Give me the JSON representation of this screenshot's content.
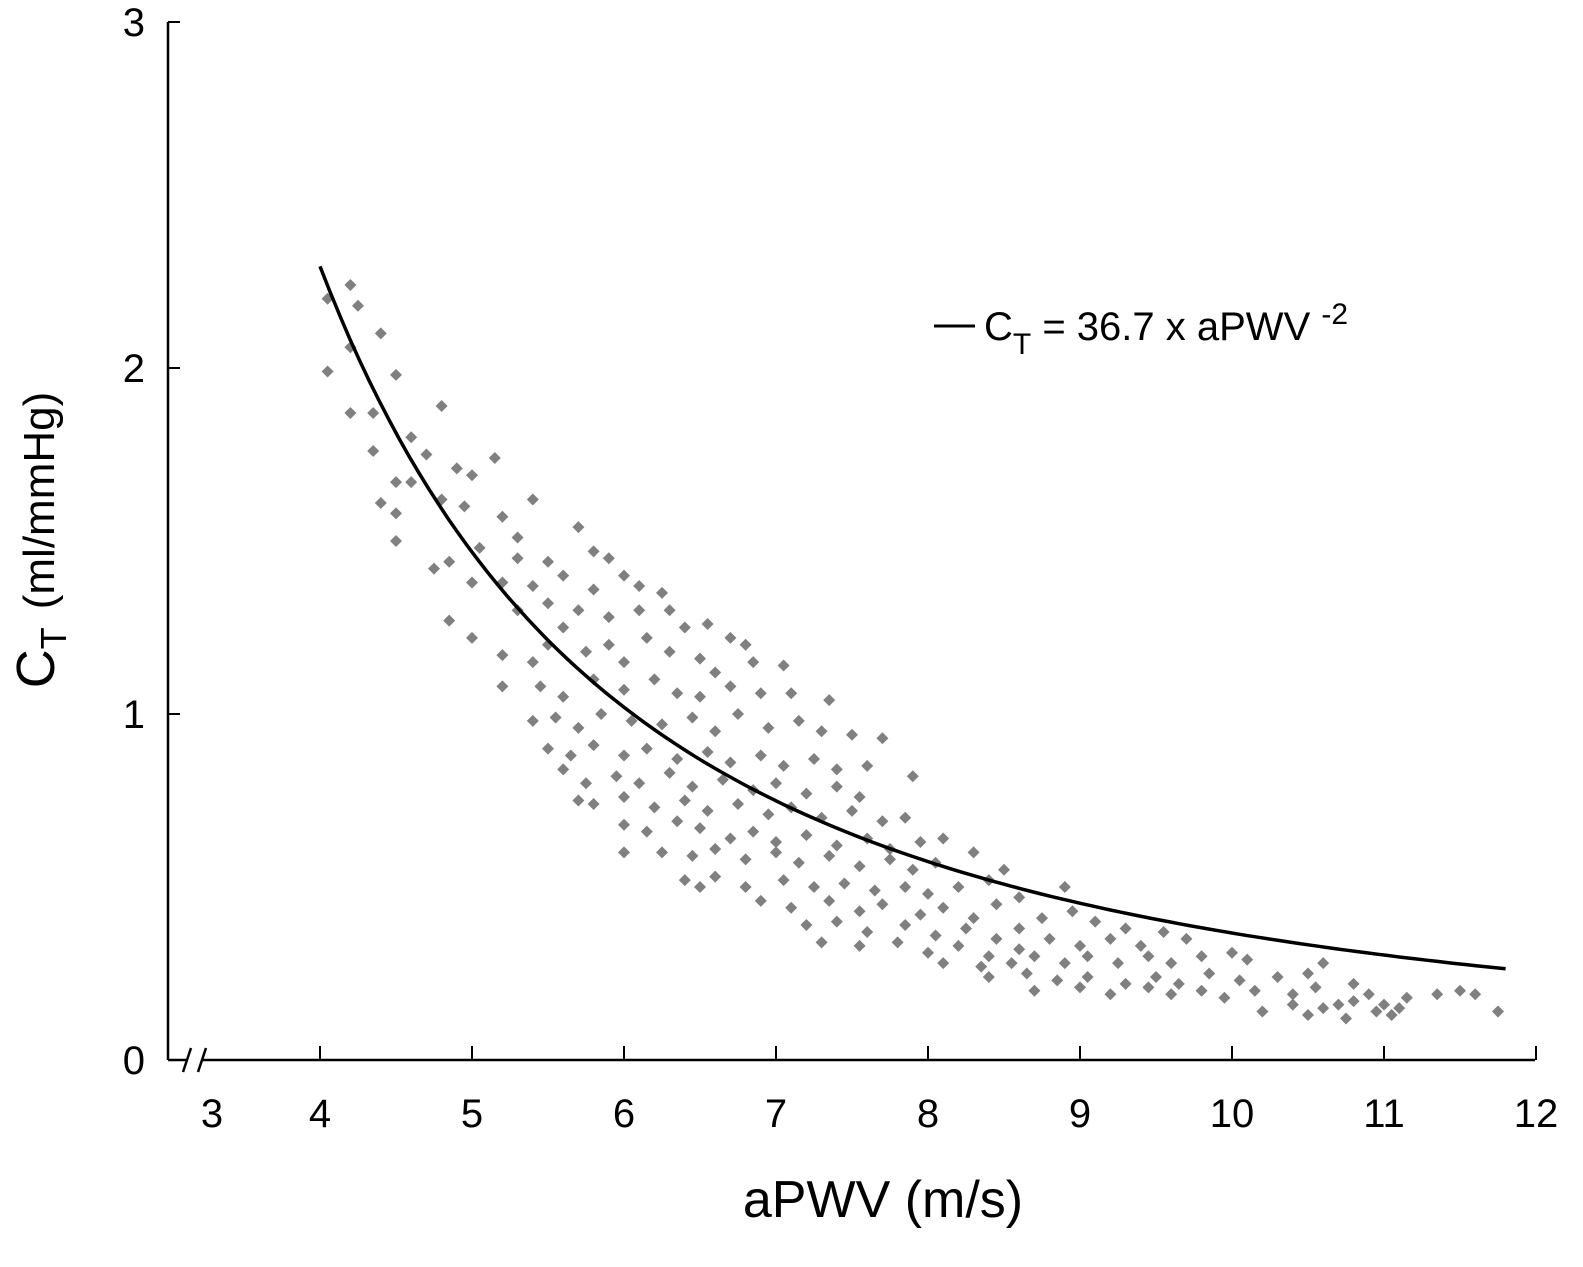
{
  "chart_data": {
    "type": "scatter",
    "ylabel": {
      "main": "C",
      "sub": "T",
      "unit": "(ml/mmHg)"
    },
    "xlabel": "aPWV (m/s)",
    "xlim": [
      3,
      12
    ],
    "ylim": [
      0,
      3
    ],
    "x_axis_break": true,
    "x_ticks": [
      "3",
      "4",
      "5",
      "6",
      "7",
      "8",
      "9",
      "10",
      "11",
      "12"
    ],
    "y_ticks": [
      "0",
      "1",
      "2",
      "3"
    ],
    "grid": false,
    "legend_position": "top-right",
    "legend": {
      "line_label": {
        "pre": "C",
        "sub": "T",
        "mid": " = 36.7 x aPWV ",
        "sup": "-2"
      }
    },
    "fit": {
      "coefficient": 36.7,
      "exponent": -2,
      "x_range": [
        4,
        11.8
      ]
    },
    "series": [
      {
        "marker": "diamond",
        "color": "#808080",
        "points": [
          [
            4.05,
            2.2
          ],
          [
            4.2,
            2.24
          ],
          [
            4.25,
            2.18
          ],
          [
            4.4,
            2.1
          ],
          [
            4.2,
            2.06
          ],
          [
            4.05,
            1.99
          ],
          [
            4.5,
            1.98
          ],
          [
            4.2,
            1.87
          ],
          [
            4.35,
            1.87
          ],
          [
            4.8,
            1.89
          ],
          [
            4.35,
            1.76
          ],
          [
            4.6,
            1.8
          ],
          [
            4.7,
            1.75
          ],
          [
            4.9,
            1.71
          ],
          [
            5.15,
            1.74
          ],
          [
            4.5,
            1.67
          ],
          [
            4.6,
            1.67
          ],
          [
            4.8,
            1.62
          ],
          [
            5.0,
            1.69
          ],
          [
            5.4,
            1.62
          ],
          [
            4.4,
            1.61
          ],
          [
            4.5,
            1.58
          ],
          [
            4.95,
            1.6
          ],
          [
            5.3,
            1.51
          ],
          [
            5.2,
            1.57
          ],
          [
            4.5,
            1.5
          ],
          [
            4.75,
            1.42
          ],
          [
            4.85,
            1.44
          ],
          [
            5.05,
            1.48
          ],
          [
            5.3,
            1.45
          ],
          [
            5.5,
            1.44
          ],
          [
            5.7,
            1.54
          ],
          [
            5.8,
            1.47
          ],
          [
            5.9,
            1.45
          ],
          [
            5.0,
            1.38
          ],
          [
            5.2,
            1.38
          ],
          [
            5.4,
            1.37
          ],
          [
            5.6,
            1.4
          ],
          [
            5.8,
            1.36
          ],
          [
            6.0,
            1.4
          ],
          [
            6.1,
            1.37
          ],
          [
            6.25,
            1.35
          ],
          [
            4.85,
            1.27
          ],
          [
            5.0,
            1.22
          ],
          [
            5.3,
            1.3
          ],
          [
            5.5,
            1.32
          ],
          [
            5.7,
            1.3
          ],
          [
            5.9,
            1.28
          ],
          [
            6.1,
            1.3
          ],
          [
            6.3,
            1.3
          ],
          [
            6.4,
            1.25
          ],
          [
            6.55,
            1.26
          ],
          [
            6.7,
            1.22
          ],
          [
            6.8,
            1.2
          ],
          [
            5.2,
            1.17
          ],
          [
            5.4,
            1.15
          ],
          [
            5.5,
            1.2
          ],
          [
            5.6,
            1.25
          ],
          [
            5.75,
            1.18
          ],
          [
            5.9,
            1.2
          ],
          [
            6.0,
            1.15
          ],
          [
            6.15,
            1.22
          ],
          [
            6.3,
            1.18
          ],
          [
            6.5,
            1.16
          ],
          [
            6.6,
            1.12
          ],
          [
            6.85,
            1.15
          ],
          [
            7.05,
            1.14
          ],
          [
            5.2,
            1.08
          ],
          [
            5.45,
            1.08
          ],
          [
            5.6,
            1.05
          ],
          [
            5.8,
            1.1
          ],
          [
            6.0,
            1.07
          ],
          [
            6.2,
            1.1
          ],
          [
            6.35,
            1.06
          ],
          [
            6.5,
            1.05
          ],
          [
            6.7,
            1.08
          ],
          [
            6.9,
            1.06
          ],
          [
            7.1,
            1.06
          ],
          [
            7.35,
            1.04
          ],
          [
            5.4,
            0.98
          ],
          [
            5.55,
            0.99
          ],
          [
            5.7,
            0.96
          ],
          [
            5.85,
            1.0
          ],
          [
            6.05,
            0.98
          ],
          [
            6.25,
            0.97
          ],
          [
            6.45,
            0.99
          ],
          [
            6.6,
            0.95
          ],
          [
            6.75,
            1.0
          ],
          [
            6.95,
            0.96
          ],
          [
            7.15,
            0.98
          ],
          [
            7.3,
            0.95
          ],
          [
            7.5,
            0.94
          ],
          [
            7.7,
            0.93
          ],
          [
            5.5,
            0.9
          ],
          [
            5.65,
            0.88
          ],
          [
            5.8,
            0.91
          ],
          [
            6.0,
            0.88
          ],
          [
            6.15,
            0.9
          ],
          [
            6.35,
            0.87
          ],
          [
            6.55,
            0.89
          ],
          [
            6.7,
            0.86
          ],
          [
            6.9,
            0.88
          ],
          [
            7.05,
            0.85
          ],
          [
            7.25,
            0.87
          ],
          [
            7.4,
            0.84
          ],
          [
            7.6,
            0.85
          ],
          [
            5.6,
            0.84
          ],
          [
            5.75,
            0.8
          ],
          [
            5.95,
            0.82
          ],
          [
            6.1,
            0.8
          ],
          [
            6.3,
            0.83
          ],
          [
            6.45,
            0.79
          ],
          [
            6.65,
            0.81
          ],
          [
            6.85,
            0.78
          ],
          [
            7.0,
            0.8
          ],
          [
            7.2,
            0.77
          ],
          [
            7.4,
            0.79
          ],
          [
            7.55,
            0.76
          ],
          [
            7.9,
            0.82
          ],
          [
            5.7,
            0.75
          ],
          [
            5.8,
            0.74
          ],
          [
            6.0,
            0.76
          ],
          [
            6.2,
            0.73
          ],
          [
            6.4,
            0.75
          ],
          [
            6.55,
            0.72
          ],
          [
            6.75,
            0.74
          ],
          [
            6.95,
            0.71
          ],
          [
            7.1,
            0.73
          ],
          [
            7.3,
            0.7
          ],
          [
            7.5,
            0.72
          ],
          [
            7.7,
            0.69
          ],
          [
            7.85,
            0.7
          ],
          [
            6.0,
            0.68
          ],
          [
            6.15,
            0.66
          ],
          [
            6.35,
            0.69
          ],
          [
            6.5,
            0.67
          ],
          [
            6.7,
            0.64
          ],
          [
            6.85,
            0.66
          ],
          [
            7.0,
            0.63
          ],
          [
            7.2,
            0.65
          ],
          [
            7.4,
            0.62
          ],
          [
            7.6,
            0.64
          ],
          [
            7.75,
            0.61
          ],
          [
            7.95,
            0.63
          ],
          [
            8.1,
            0.64
          ],
          [
            6.0,
            0.6
          ],
          [
            6.25,
            0.6
          ],
          [
            6.45,
            0.59
          ],
          [
            6.6,
            0.61
          ],
          [
            6.8,
            0.58
          ],
          [
            7.0,
            0.6
          ],
          [
            7.15,
            0.57
          ],
          [
            7.35,
            0.59
          ],
          [
            7.55,
            0.56
          ],
          [
            7.75,
            0.58
          ],
          [
            7.9,
            0.55
          ],
          [
            8.05,
            0.57
          ],
          [
            8.3,
            0.6
          ],
          [
            6.4,
            0.52
          ],
          [
            6.6,
            0.53
          ],
          [
            6.8,
            0.5
          ],
          [
            7.05,
            0.52
          ],
          [
            7.25,
            0.5
          ],
          [
            7.45,
            0.51
          ],
          [
            7.65,
            0.49
          ],
          [
            7.85,
            0.5
          ],
          [
            8.0,
            0.48
          ],
          [
            8.2,
            0.5
          ],
          [
            8.4,
            0.52
          ],
          [
            8.5,
            0.55
          ],
          [
            6.5,
            0.5
          ],
          [
            6.9,
            0.46
          ],
          [
            7.1,
            0.44
          ],
          [
            7.35,
            0.46
          ],
          [
            7.55,
            0.43
          ],
          [
            7.7,
            0.45
          ],
          [
            7.95,
            0.42
          ],
          [
            8.1,
            0.44
          ],
          [
            8.3,
            0.41
          ],
          [
            8.45,
            0.45
          ],
          [
            8.6,
            0.47
          ],
          [
            8.9,
            0.5
          ],
          [
            7.2,
            0.39
          ],
          [
            7.4,
            0.4
          ],
          [
            7.6,
            0.37
          ],
          [
            7.85,
            0.39
          ],
          [
            8.05,
            0.36
          ],
          [
            8.25,
            0.38
          ],
          [
            8.45,
            0.35
          ],
          [
            8.6,
            0.38
          ],
          [
            8.75,
            0.41
          ],
          [
            8.95,
            0.43
          ],
          [
            9.1,
            0.4
          ],
          [
            9.3,
            0.38
          ],
          [
            7.3,
            0.34
          ],
          [
            7.55,
            0.33
          ],
          [
            7.8,
            0.34
          ],
          [
            8.0,
            0.31
          ],
          [
            8.2,
            0.33
          ],
          [
            8.4,
            0.3
          ],
          [
            8.6,
            0.32
          ],
          [
            8.8,
            0.35
          ],
          [
            9.0,
            0.33
          ],
          [
            9.2,
            0.35
          ],
          [
            9.4,
            0.33
          ],
          [
            9.55,
            0.37
          ],
          [
            9.7,
            0.35
          ],
          [
            8.1,
            0.28
          ],
          [
            8.35,
            0.27
          ],
          [
            8.55,
            0.28
          ],
          [
            8.7,
            0.3
          ],
          [
            8.9,
            0.28
          ],
          [
            9.05,
            0.3
          ],
          [
            9.25,
            0.28
          ],
          [
            9.45,
            0.3
          ],
          [
            9.6,
            0.28
          ],
          [
            9.8,
            0.3
          ],
          [
            10.0,
            0.31
          ],
          [
            10.1,
            0.29
          ],
          [
            8.4,
            0.24
          ],
          [
            8.65,
            0.25
          ],
          [
            8.85,
            0.23
          ],
          [
            9.05,
            0.24
          ],
          [
            9.3,
            0.22
          ],
          [
            9.5,
            0.24
          ],
          [
            9.65,
            0.22
          ],
          [
            9.85,
            0.25
          ],
          [
            10.05,
            0.23
          ],
          [
            10.3,
            0.24
          ],
          [
            10.5,
            0.25
          ],
          [
            10.6,
            0.28
          ],
          [
            8.7,
            0.2
          ],
          [
            9.0,
            0.21
          ],
          [
            9.2,
            0.19
          ],
          [
            9.45,
            0.21
          ],
          [
            9.6,
            0.19
          ],
          [
            9.8,
            0.2
          ],
          [
            9.95,
            0.18
          ],
          [
            10.15,
            0.2
          ],
          [
            10.4,
            0.19
          ],
          [
            10.55,
            0.21
          ],
          [
            10.8,
            0.22
          ],
          [
            10.9,
            0.19
          ],
          [
            10.4,
            0.16
          ],
          [
            10.6,
            0.15
          ],
          [
            10.8,
            0.17
          ],
          [
            11.0,
            0.16
          ],
          [
            11.15,
            0.18
          ],
          [
            11.35,
            0.19
          ],
          [
            11.5,
            0.2
          ],
          [
            11.6,
            0.19
          ],
          [
            10.2,
            0.14
          ],
          [
            10.5,
            0.13
          ],
          [
            10.75,
            0.12
          ],
          [
            10.95,
            0.14
          ],
          [
            11.1,
            0.15
          ],
          [
            11.75,
            0.14
          ],
          [
            11.05,
            0.13
          ],
          [
            10.7,
            0.16
          ]
        ]
      }
    ]
  }
}
